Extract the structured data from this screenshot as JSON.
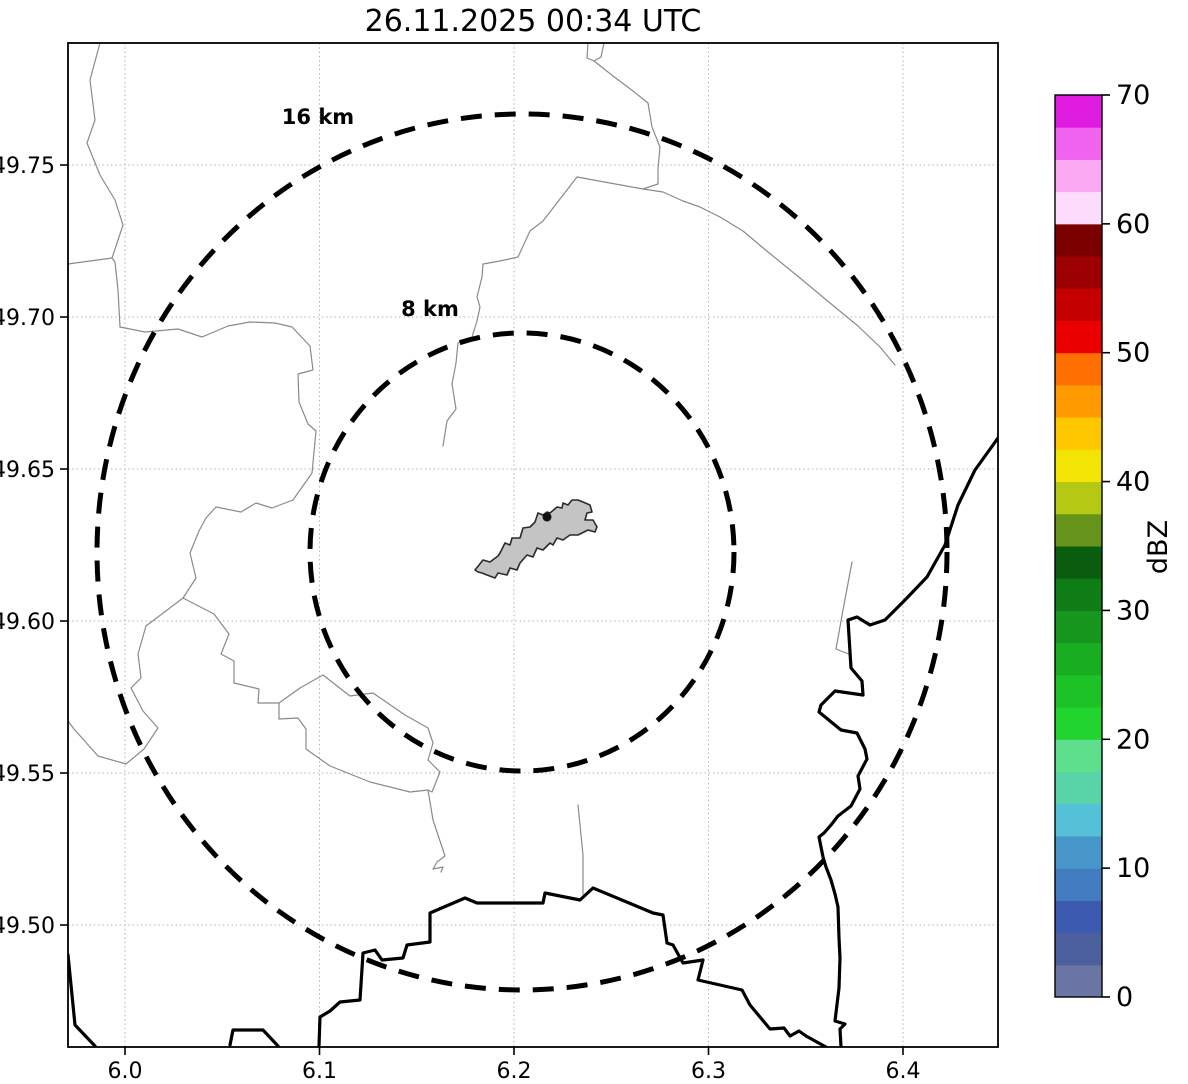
{
  "figure": {
    "title": "26.11.2025 00:34 UTC"
  },
  "map": {
    "x_axis": {
      "tick_labels": [
        "6.0",
        "6.1",
        "6.2",
        "6.3",
        "6.4"
      ]
    },
    "y_axis": {
      "tick_labels": [
        "49.75",
        "49.70",
        "49.65",
        "49.60",
        "49.55",
        "49.50"
      ]
    },
    "range_rings": [
      {
        "label": "16 km",
        "radius_km": 16
      },
      {
        "label": "8 km",
        "radius_km": 8
      }
    ]
  },
  "colorbar": {
    "label": "dBZ",
    "min": 0,
    "max": 70,
    "tick_values": [
      0,
      10,
      20,
      30,
      40,
      50,
      60,
      70
    ],
    "band_step_dbz": 2.5,
    "band_colors_bottom_to_top": [
      "#6a75a4",
      "#4a5f9c",
      "#3c5bb0",
      "#417cc1",
      "#4897cb",
      "#55c1d9",
      "#59d4a8",
      "#5edf8d",
      "#22d42e",
      "#1dc226",
      "#19ae21",
      "#16961c",
      "#0f7d15",
      "#0a5c0e",
      "#66941b",
      "#b4c814",
      "#f2e405",
      "#fdc800",
      "#ff9b00",
      "#ff6e00",
      "#ea0000",
      "#c40000",
      "#9d0000",
      "#7a0000",
      "#fcdcfb",
      "#f9aaf2",
      "#f063ee",
      "#e01ce0"
    ]
  },
  "colors": {
    "background": "#ffffff",
    "grid": "#b3b3b3",
    "admin_boundary": "#8a8a8a",
    "country_border": "#000000",
    "range_ring": "#000000",
    "city_fill": "#c4c4c4",
    "city_outline": "#2b2b2b",
    "marker": "#111111",
    "text": "#000000"
  },
  "chart_data": {
    "type": "heatmap",
    "title": "26.11.2025 00:34 UTC",
    "xlabel": "",
    "ylabel": "",
    "x_ticks": [
      6.0,
      6.1,
      6.2,
      6.3,
      6.4
    ],
    "y_ticks": [
      49.5,
      49.55,
      49.6,
      49.65,
      49.7,
      49.75
    ],
    "xlim": [
      5.97,
      6.451
    ],
    "ylim": [
      49.459,
      49.79
    ],
    "grid": true,
    "colorbar_label": "dBZ",
    "colorbar_range": [
      0,
      70
    ],
    "range_rings_km": [
      8,
      16
    ],
    "ring_center": {
      "lon": 6.205,
      "lat": 49.623
    },
    "radar_echoes_visible": 0
  }
}
